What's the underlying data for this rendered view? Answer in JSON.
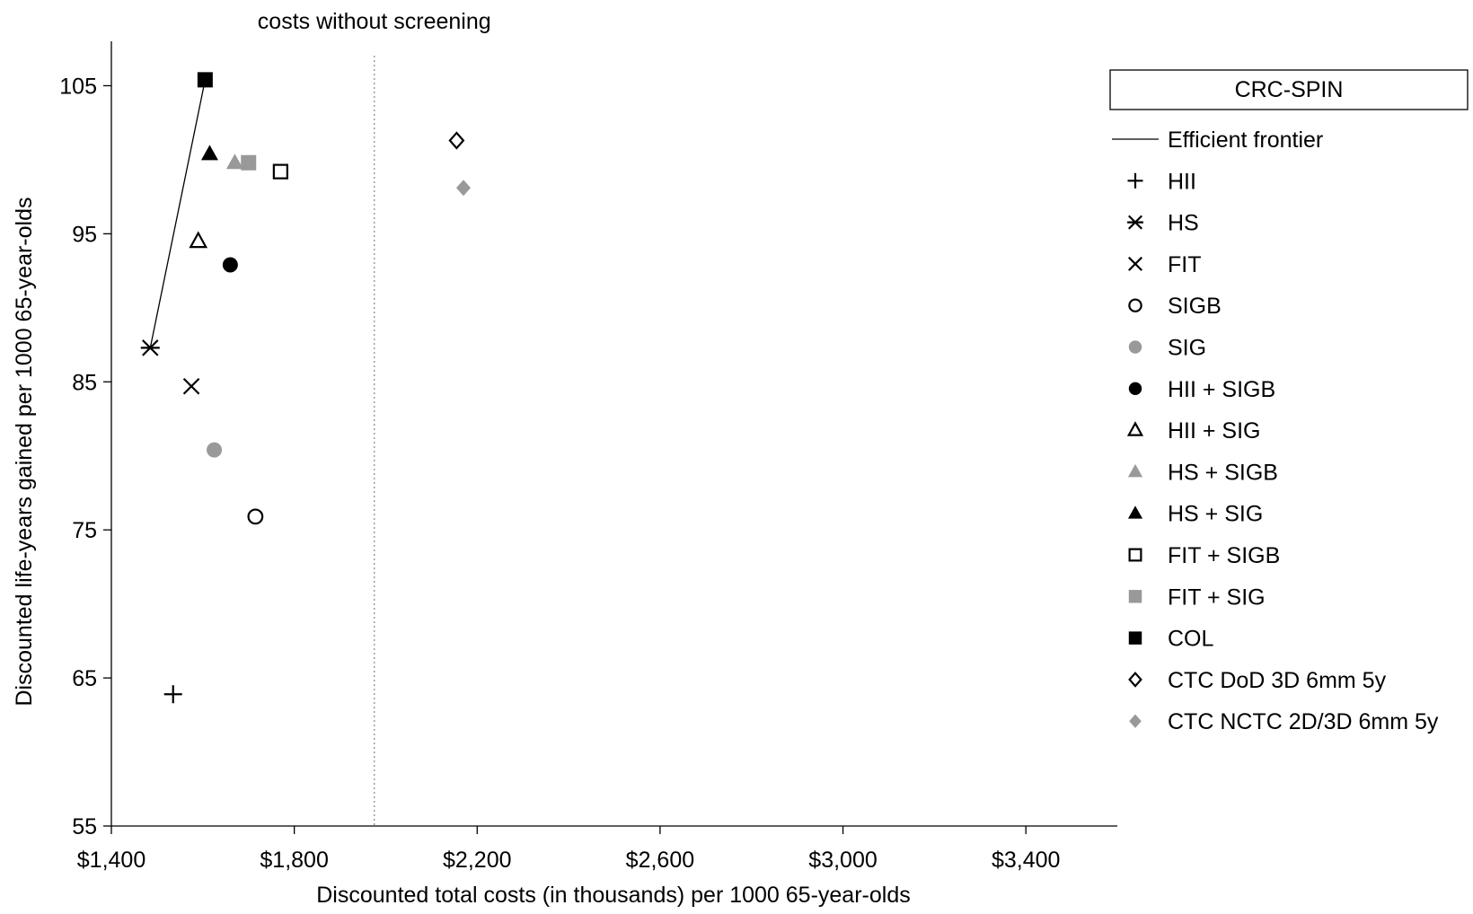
{
  "chart_data": {
    "type": "scatter",
    "title": "CRC-SPIN",
    "xlabel": "Discounted total costs (in thousands) per 1000 65-year-olds",
    "ylabel": "Discounted life-years gained per 1000 65-year-olds",
    "xlim": [
      1400,
      3600
    ],
    "ylim": [
      55,
      108
    ],
    "xticks": [
      1400,
      1800,
      2200,
      2600,
      3000,
      3400
    ],
    "xtick_labels": [
      "$1,400",
      "$1,800",
      "$2,200",
      "$2,600",
      "$3,000",
      "$3,400"
    ],
    "yticks": [
      55,
      65,
      75,
      85,
      95,
      105
    ],
    "ytick_labels": [
      "55",
      "65",
      "75",
      "85",
      "95",
      "105"
    ],
    "grid": false,
    "legend_position": "right",
    "reference_line": {
      "x": 1975,
      "label": "costs without screening",
      "style": "dotted",
      "color": "#999999"
    },
    "frontier": {
      "name": "Efficient frontier",
      "points": [
        [
          1485,
          87.3
        ],
        [
          1605,
          105.4
        ]
      ]
    },
    "series": [
      {
        "name": "HII",
        "marker": "plus",
        "color": "#000000",
        "x": 1535,
        "y": 63.9
      },
      {
        "name": "HS",
        "marker": "asterisk",
        "color": "#000000",
        "x": 1485,
        "y": 87.3
      },
      {
        "name": "FIT",
        "marker": "x",
        "color": "#000000",
        "x": 1575,
        "y": 84.7
      },
      {
        "name": "SIGB",
        "marker": "circle-open",
        "color": "#000000",
        "x": 1715,
        "y": 75.9
      },
      {
        "name": "SIG",
        "marker": "circle-filled",
        "color": "#999999",
        "x": 1625,
        "y": 80.4
      },
      {
        "name": "HII + SIGB",
        "marker": "circle-filled",
        "color": "#000000",
        "x": 1660,
        "y": 92.9
      },
      {
        "name": "HII + SIG",
        "marker": "triangle-open",
        "color": "#000000",
        "x": 1590,
        "y": 94.5
      },
      {
        "name": "HS + SIGB",
        "marker": "triangle-filled",
        "color": "#999999",
        "x": 1670,
        "y": 99.8
      },
      {
        "name": "HS + SIG",
        "marker": "triangle-filled",
        "color": "#000000",
        "x": 1615,
        "y": 100.4
      },
      {
        "name": "FIT + SIGB",
        "marker": "square-open",
        "color": "#000000",
        "x": 1770,
        "y": 99.2
      },
      {
        "name": "FIT + SIG",
        "marker": "square-filled",
        "color": "#999999",
        "x": 1700,
        "y": 99.8
      },
      {
        "name": "COL",
        "marker": "square-filled",
        "color": "#000000",
        "x": 1605,
        "y": 105.4
      },
      {
        "name": "CTC DoD 3D 6mm 5y",
        "marker": "diamond-open",
        "color": "#000000",
        "x": 2155,
        "y": 101.3
      },
      {
        "name": "CTC NCTC 2D/3D 6mm 5y",
        "marker": "diamond-filled",
        "color": "#999999",
        "x": 2170,
        "y": 98.1
      }
    ]
  }
}
